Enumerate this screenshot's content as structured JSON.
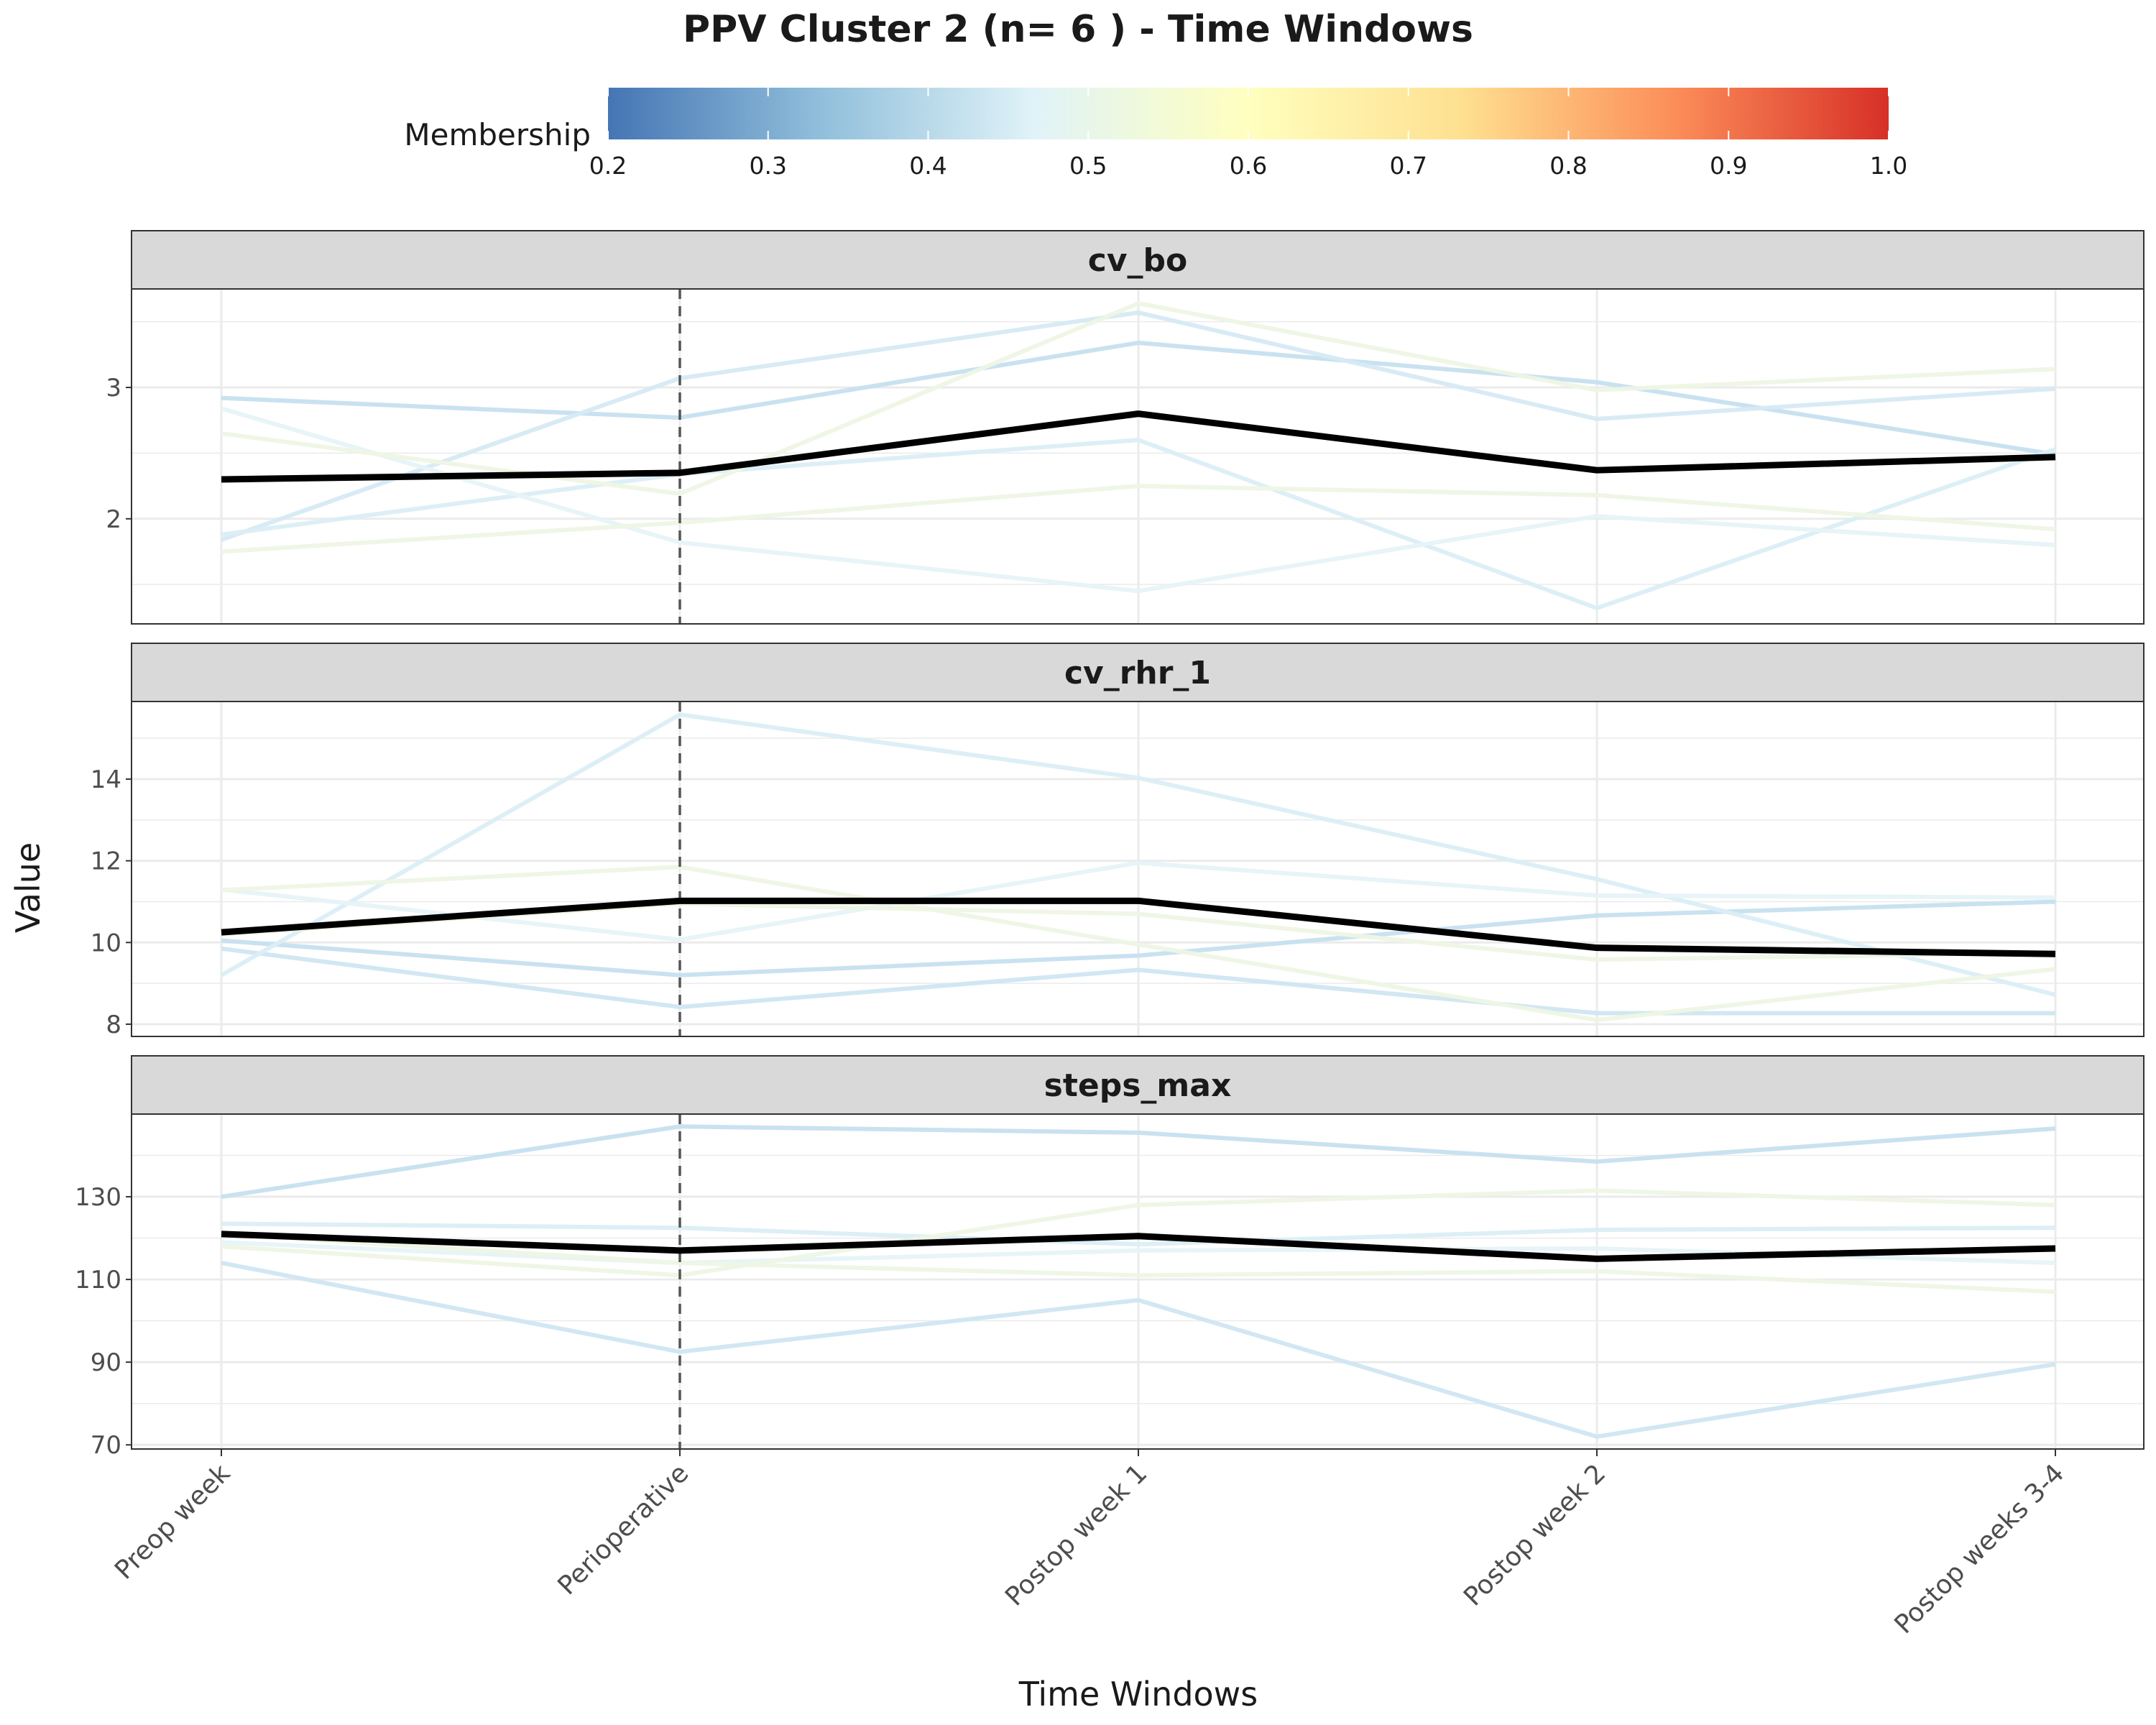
{
  "title": "PPV Cluster 2 (n= 6 ) - Time Windows",
  "xlabel": "Time Windows",
  "ylabel": "Value",
  "legend": {
    "title": "Membership",
    "ticks": [
      "0.2",
      "0.3",
      "0.4",
      "0.5",
      "0.6",
      "0.7",
      "0.8",
      "0.9",
      "1.0"
    ],
    "range": [
      0.2,
      1.0
    ],
    "colors": [
      "#4575b4",
      "#91bfdb",
      "#e0f3f8",
      "#ffffbf",
      "#fee090",
      "#fc8d59",
      "#d73027"
    ]
  },
  "reference_line": {
    "category": "Perioperative",
    "style": "dashed"
  },
  "colors": {
    "mean": "#000000",
    "strip_fill": "#d9d9d9",
    "grid": "#ebebeb",
    "member_light_blue": "#c6e0ef",
    "member_pale_blue": "#dbeef6",
    "member_pale_green": "#eef5e4"
  },
  "chart_data": {
    "type": "line",
    "categories": [
      "Preop week",
      "Perioperative",
      "Postop week 1",
      "Postop week 2",
      "Postop weeks 3-4"
    ],
    "panels": [
      {
        "facet": "cv_bo",
        "ylim": [
          1.2,
          3.75
        ],
        "yticks": [
          "2",
          "3"
        ],
        "mean": [
          2.3,
          2.35,
          2.8,
          2.37,
          2.47
        ],
        "members": [
          {
            "values": [
              2.92,
              2.77,
              3.34,
              3.04,
              2.49
            ],
            "color": "#c6e0ef"
          },
          {
            "values": [
              1.84,
              3.07,
              3.57,
              2.76,
              2.99
            ],
            "color": "#d6eaf4"
          },
          {
            "values": [
              1.88,
              2.34,
              2.6,
              1.32,
              2.53
            ],
            "color": "#dbeef6"
          },
          {
            "values": [
              2.84,
              1.82,
              1.45,
              2.02,
              1.8
            ],
            "color": "#e6f3f8"
          },
          {
            "values": [
              2.65,
              2.19,
              3.64,
              2.98,
              3.14
            ],
            "color": "#eef5e4"
          },
          {
            "values": [
              1.75,
              1.97,
              2.25,
              2.18,
              1.92
            ],
            "color": "#eef5e4"
          }
        ]
      },
      {
        "facet": "cv_rhr_1",
        "ylim": [
          7.7,
          15.9
        ],
        "yticks": [
          "8",
          "10",
          "12",
          "14"
        ],
        "mean": [
          10.25,
          11.02,
          11.02,
          9.87,
          9.72
        ],
        "members": [
          {
            "values": [
              10.05,
              9.2,
              9.68,
              10.66,
              11.0
            ],
            "color": "#c6e0ef"
          },
          {
            "values": [
              9.85,
              8.42,
              9.33,
              8.27,
              8.27
            ],
            "color": "#d0e6f2"
          },
          {
            "values": [
              9.2,
              15.58,
              14.03,
              11.55,
              8.72
            ],
            "color": "#dbeef6"
          },
          {
            "values": [
              11.3,
              10.07,
              11.95,
              11.15,
              11.1
            ],
            "color": "#e6f3f8"
          },
          {
            "values": [
              11.28,
              11.85,
              9.95,
              8.1,
              9.35
            ],
            "color": "#eef5e4"
          },
          {
            "values": [
              10.2,
              10.95,
              10.7,
              9.58,
              9.75
            ],
            "color": "#eef5e4"
          }
        ]
      },
      {
        "facet": "steps_max",
        "ylim": [
          69,
          150
        ],
        "yticks": [
          "70",
          "90",
          "110",
          "130"
        ],
        "mean": [
          121,
          117,
          120.5,
          115,
          117.5
        ],
        "members": [
          {
            "values": [
              130,
              147,
              145.5,
              138.5,
              146.5
            ],
            "color": "#c6e0ef"
          },
          {
            "values": [
              114,
              92.5,
              105,
              72,
              89.5
            ],
            "color": "#d0e6f2"
          },
          {
            "values": [
              123.5,
              122.5,
              118.5,
              122,
              122.5
            ],
            "color": "#dbeef6"
          },
          {
            "values": [
              119,
              114,
              117,
              117.5,
              114
            ],
            "color": "#e6f3f8"
          },
          {
            "values": [
              118,
              111,
              128,
              131.5,
              128
            ],
            "color": "#eef5e4"
          },
          {
            "values": [
              121,
              114,
              111,
              112,
              107
            ],
            "color": "#eef5e4"
          }
        ]
      }
    ]
  }
}
